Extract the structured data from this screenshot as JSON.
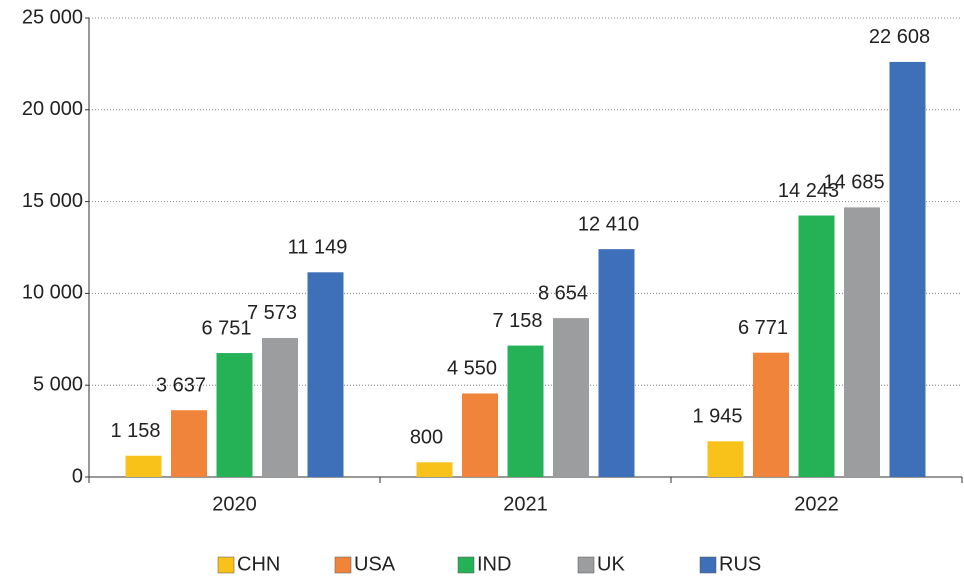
{
  "chart_data": {
    "type": "bar",
    "categories": [
      "2020",
      "2021",
      "2022"
    ],
    "series": [
      {
        "name": "CHN",
        "color": "#f9c21a",
        "values": [
          1158,
          800,
          1945
        ],
        "value_labels": [
          "1 158",
          "800",
          "1 945"
        ]
      },
      {
        "name": "USA",
        "color": "#f0843b",
        "values": [
          3637,
          4550,
          6771
        ],
        "value_labels": [
          "3 637",
          "4 550",
          "6 771"
        ]
      },
      {
        "name": "IND",
        "color": "#25b257",
        "values": [
          6751,
          7158,
          14243
        ],
        "value_labels": [
          "6 751",
          "7 158",
          "14 243"
        ]
      },
      {
        "name": "UK",
        "color": "#9b9d9e",
        "values": [
          7573,
          8654,
          14685
        ],
        "value_labels": [
          "7 573",
          "8 654",
          "14 685"
        ]
      },
      {
        "name": "RUS",
        "color": "#3e6fb9",
        "values": [
          11149,
          12410,
          22608
        ],
        "value_labels": [
          "11 149",
          "12 410",
          "22 608"
        ]
      }
    ],
    "ylim": [
      0,
      25000
    ],
    "yticks": [
      0,
      {
        "value": 5000,
        "label": "5 000"
      },
      {
        "value": 10000,
        "label": "10 000"
      },
      {
        "value": 15000,
        "label": "15 000"
      },
      {
        "value": 20000,
        "label": "20 000"
      },
      {
        "value": 25000,
        "label": "25 000"
      }
    ],
    "grid": true,
    "legend": "bottom"
  }
}
